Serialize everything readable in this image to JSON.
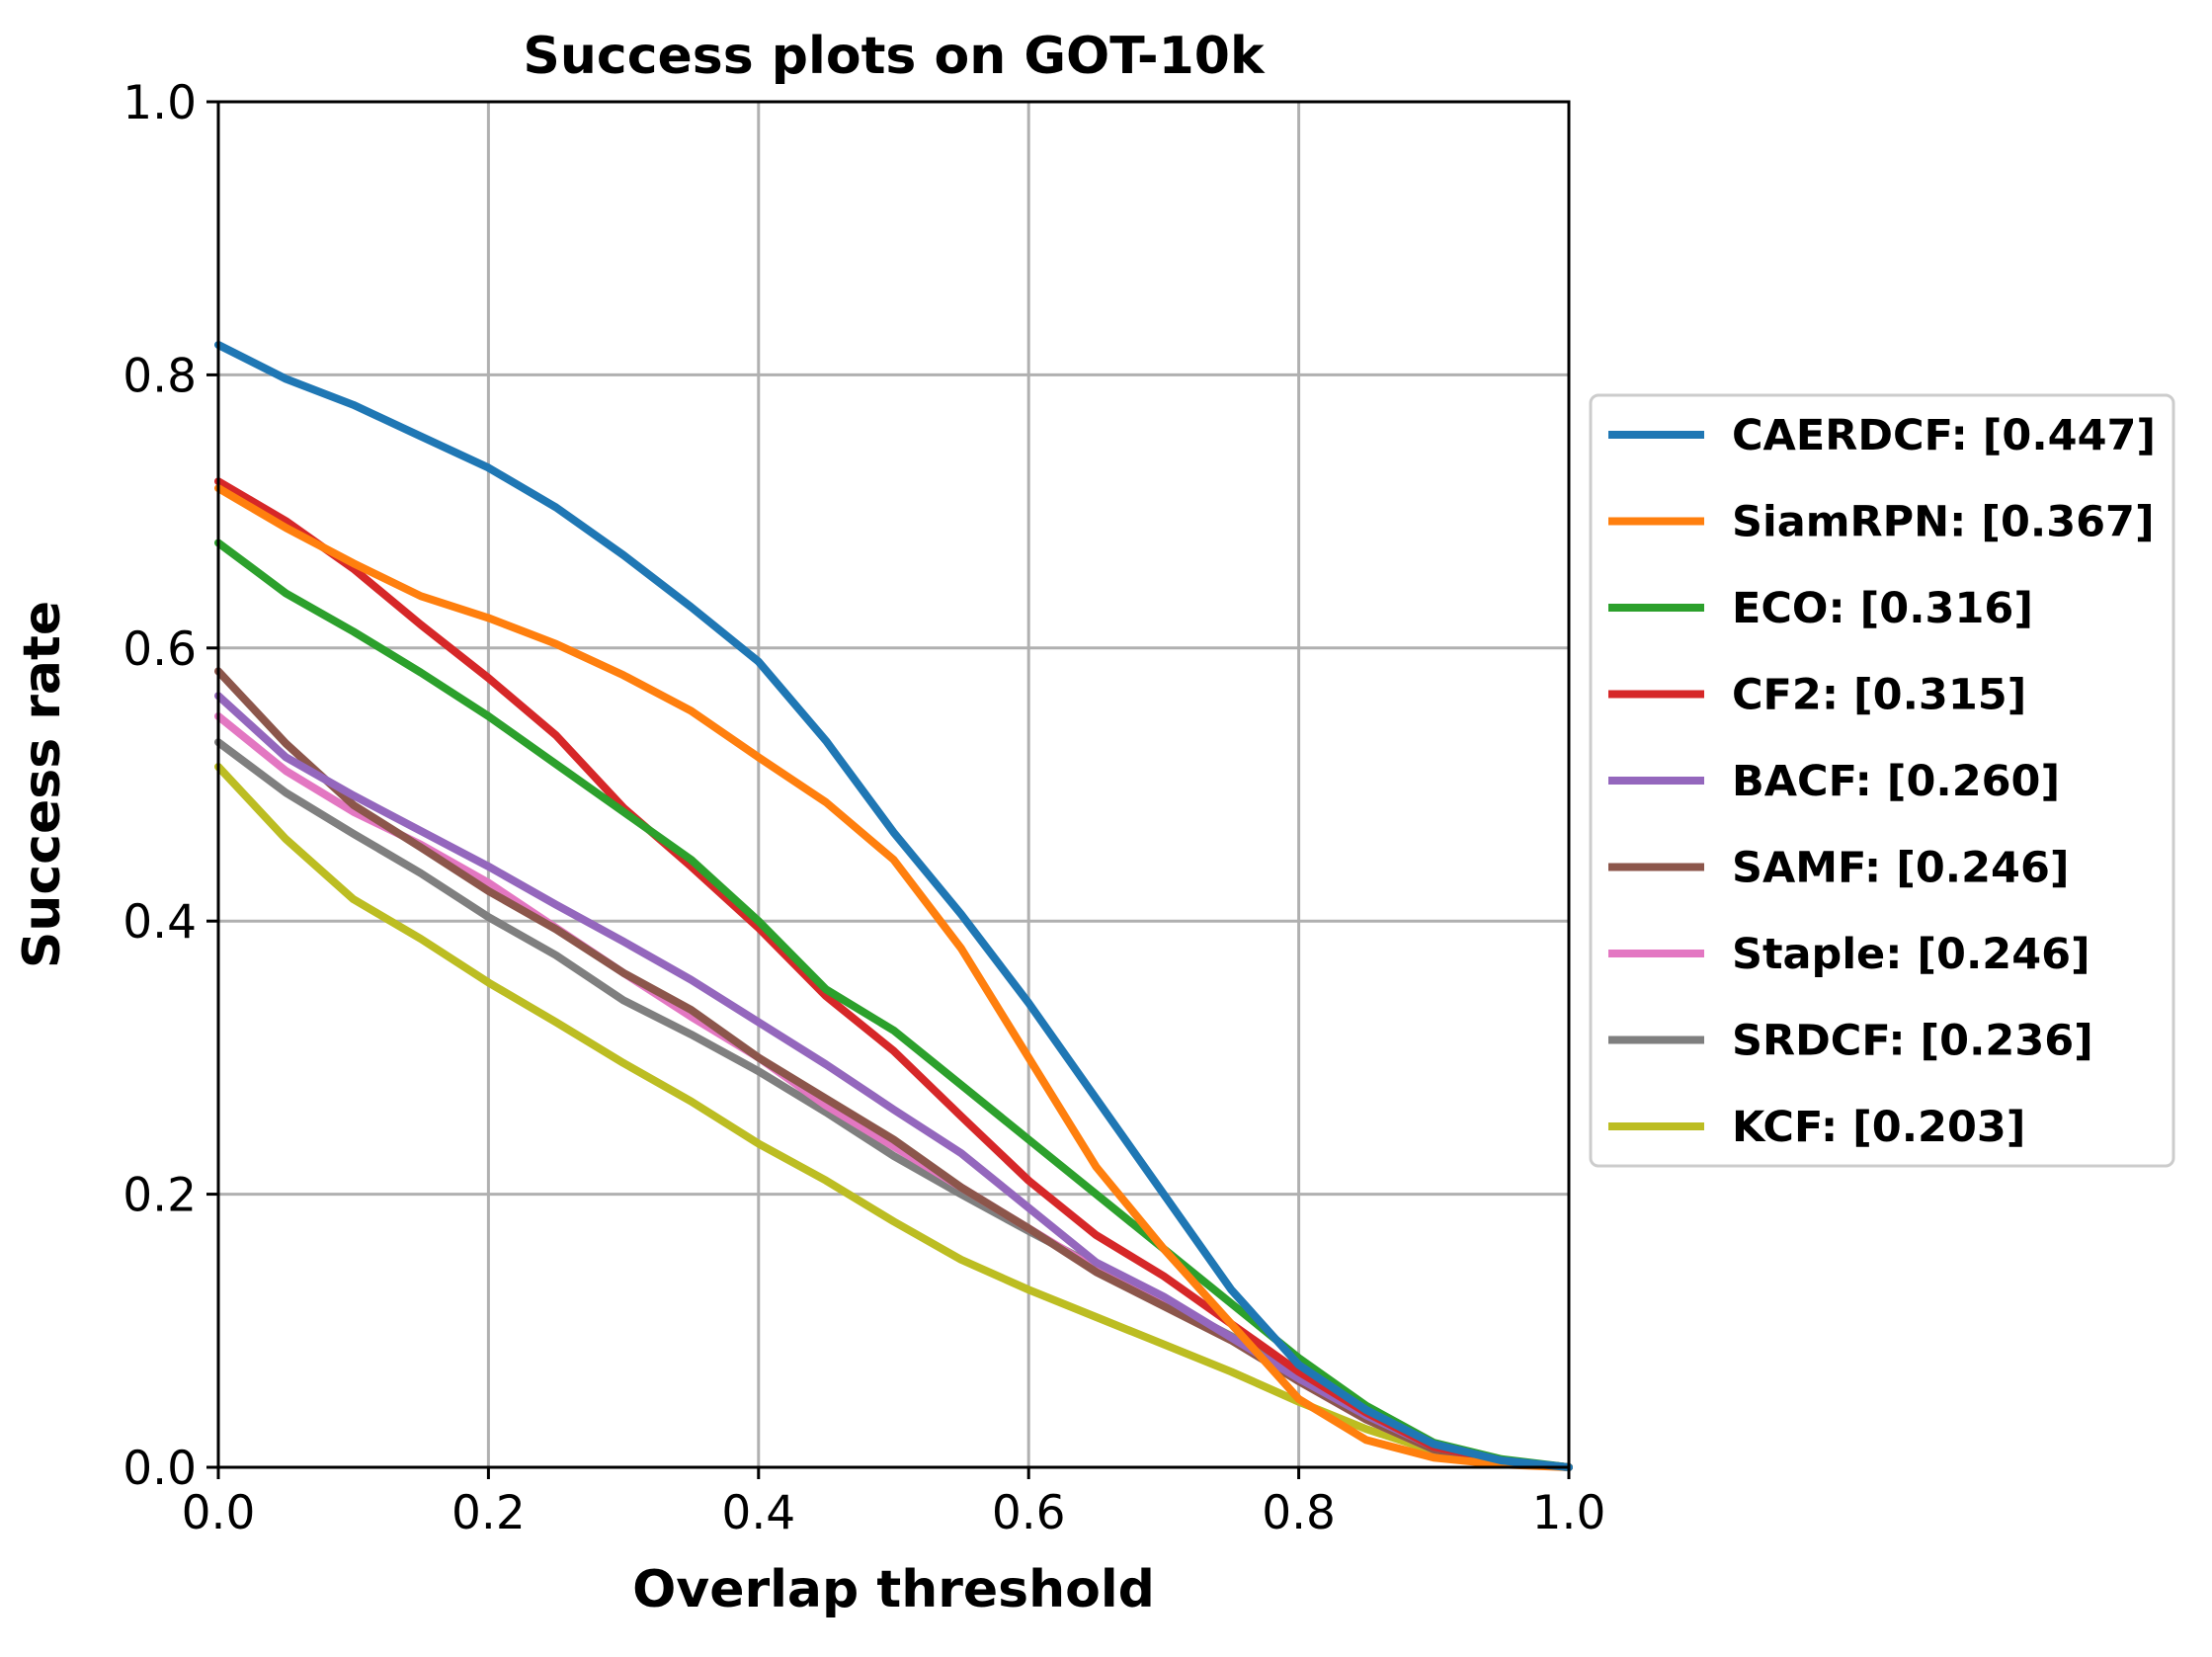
{
  "chart_data": {
    "type": "line",
    "title": "Success plots on GOT-10k",
    "xlabel": "Overlap threshold",
    "ylabel": "Success rate",
    "xlim": [
      0.0,
      1.0
    ],
    "ylim": [
      0.0,
      1.0
    ],
    "xticks": [
      "0.0",
      "0.2",
      "0.4",
      "0.6",
      "0.8",
      "1.0"
    ],
    "yticks": [
      "0.0",
      "0.2",
      "0.4",
      "0.6",
      "0.8",
      "1.0"
    ],
    "grid": true,
    "legend_position": "center-right, outside plot",
    "x": [
      0.0,
      0.05,
      0.1,
      0.15,
      0.2,
      0.25,
      0.3,
      0.35,
      0.4,
      0.45,
      0.5,
      0.55,
      0.6,
      0.65,
      0.7,
      0.75,
      0.8,
      0.85,
      0.9,
      0.95,
      1.0
    ],
    "series": [
      {
        "name": "CAERDCF: [0.447]",
        "color": "#1f77b4",
        "values": [
          0.822,
          0.797,
          0.778,
          0.755,
          0.732,
          0.703,
          0.668,
          0.63,
          0.59,
          0.532,
          0.465,
          0.405,
          0.34,
          0.27,
          0.2,
          0.13,
          0.075,
          0.042,
          0.017,
          0.005,
          0.0
        ]
      },
      {
        "name": "SiamRPN: [0.367]",
        "color": "#ff7f0e",
        "values": [
          0.717,
          0.688,
          0.662,
          0.638,
          0.622,
          0.603,
          0.58,
          0.554,
          0.52,
          0.487,
          0.445,
          0.38,
          0.3,
          0.22,
          0.16,
          0.105,
          0.05,
          0.02,
          0.007,
          0.002,
          0.0
        ]
      },
      {
        "name": "ECO: [0.316]",
        "color": "#2ca02c",
        "values": [
          0.677,
          0.64,
          0.612,
          0.582,
          0.55,
          0.515,
          0.48,
          0.445,
          0.4,
          0.35,
          0.32,
          0.28,
          0.24,
          0.2,
          0.16,
          0.12,
          0.08,
          0.045,
          0.018,
          0.006,
          0.0
        ]
      },
      {
        "name": "CF2: [0.315]",
        "color": "#d62728",
        "values": [
          0.722,
          0.693,
          0.658,
          0.617,
          0.578,
          0.536,
          0.483,
          0.44,
          0.395,
          0.345,
          0.305,
          0.257,
          0.21,
          0.17,
          0.14,
          0.105,
          0.07,
          0.04,
          0.015,
          0.005,
          0.0
        ]
      },
      {
        "name": "BACF: [0.260]",
        "color": "#9467bd",
        "values": [
          0.565,
          0.52,
          0.492,
          0.466,
          0.44,
          0.412,
          0.385,
          0.357,
          0.326,
          0.295,
          0.262,
          0.23,
          0.19,
          0.15,
          0.125,
          0.095,
          0.065,
          0.038,
          0.015,
          0.005,
          0.0
        ]
      },
      {
        "name": "SAMF: [0.246]",
        "color": "#8c564b",
        "values": [
          0.583,
          0.53,
          0.485,
          0.454,
          0.422,
          0.394,
          0.362,
          0.335,
          0.3,
          0.27,
          0.24,
          0.205,
          0.175,
          0.143,
          0.118,
          0.093,
          0.063,
          0.035,
          0.013,
          0.004,
          0.0
        ]
      },
      {
        "name": "Staple: [0.246]",
        "color": "#e377c2",
        "values": [
          0.55,
          0.51,
          0.48,
          0.456,
          0.428,
          0.395,
          0.362,
          0.33,
          0.3,
          0.265,
          0.235,
          0.205,
          0.175,
          0.145,
          0.12,
          0.095,
          0.063,
          0.035,
          0.013,
          0.004,
          0.0
        ]
      },
      {
        "name": "SRDCF: [0.236]",
        "color": "#7f7f7f",
        "values": [
          0.531,
          0.494,
          0.464,
          0.435,
          0.403,
          0.375,
          0.342,
          0.317,
          0.29,
          0.26,
          0.228,
          0.2,
          0.173,
          0.147,
          0.122,
          0.096,
          0.068,
          0.038,
          0.015,
          0.005,
          0.0
        ]
      },
      {
        "name": "KCF: [0.203]",
        "color": "#bcbd22",
        "values": [
          0.513,
          0.46,
          0.416,
          0.387,
          0.355,
          0.326,
          0.296,
          0.268,
          0.237,
          0.21,
          0.18,
          0.152,
          0.13,
          0.11,
          0.09,
          0.07,
          0.048,
          0.028,
          0.012,
          0.004,
          0.0
        ]
      }
    ]
  }
}
